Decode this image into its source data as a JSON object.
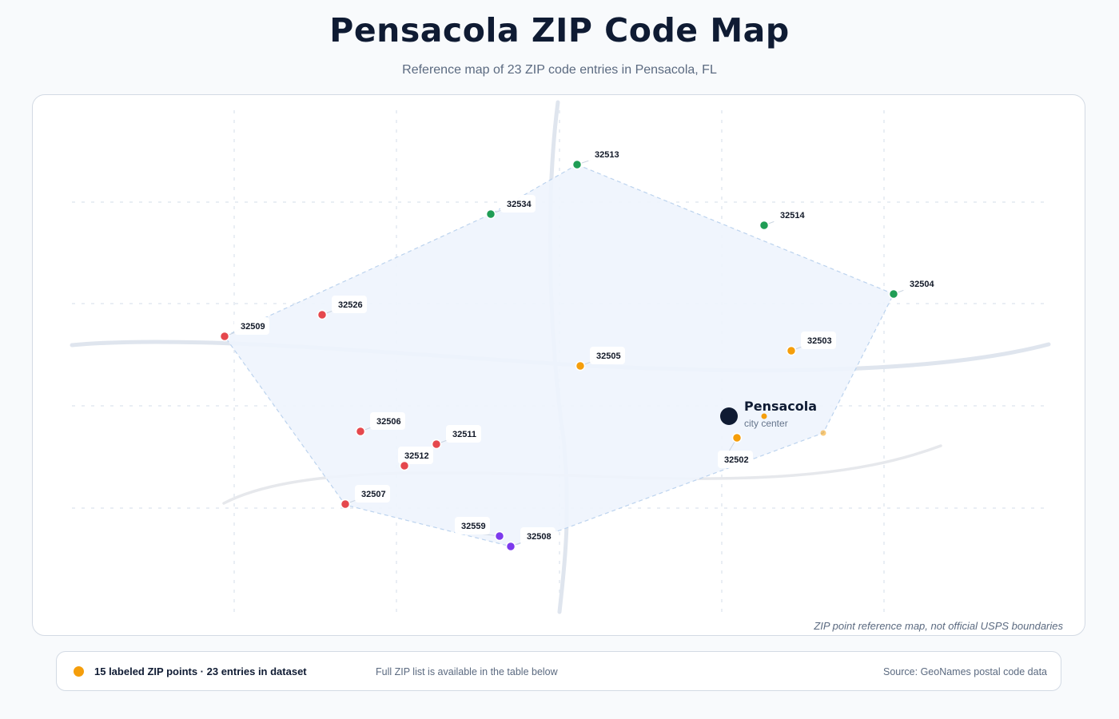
{
  "title": "Pensacola ZIP Code Map",
  "subtitle": "Reference map of 23 ZIP code entries in Pensacola, FL",
  "disclaimer": "ZIP point reference map, not official USPS boundaries",
  "city": {
    "name": "Pensacola",
    "sublabel": "city center"
  },
  "colors": {
    "west": "#e5484d",
    "north": "#1f9d55",
    "central": "#f59e0b",
    "south": "#7c3aed",
    "city": "#0f1b33",
    "region_fill": "#eef4fd",
    "road": "#dfe5ee"
  },
  "zip_points": [
    {
      "zip": "32513",
      "group": "north"
    },
    {
      "zip": "32534",
      "group": "north"
    },
    {
      "zip": "32514",
      "group": "north"
    },
    {
      "zip": "32504",
      "group": "north"
    },
    {
      "zip": "32526",
      "group": "west"
    },
    {
      "zip": "32509",
      "group": "west"
    },
    {
      "zip": "32505",
      "group": "central"
    },
    {
      "zip": "32503",
      "group": "central"
    },
    {
      "zip": "32506",
      "group": "west"
    },
    {
      "zip": "32511",
      "group": "west"
    },
    {
      "zip": "32512",
      "group": "west"
    },
    {
      "zip": "32507",
      "group": "west"
    },
    {
      "zip": "32502",
      "group": "central"
    },
    {
      "zip": "32559",
      "group": "south"
    },
    {
      "zip": "32508",
      "group": "south"
    }
  ],
  "legend": {
    "label": "15 labeled ZIP points · 23 entries in dataset",
    "note": "Full ZIP list is available in the table below",
    "source": "Source: GeoNames postal code data"
  }
}
